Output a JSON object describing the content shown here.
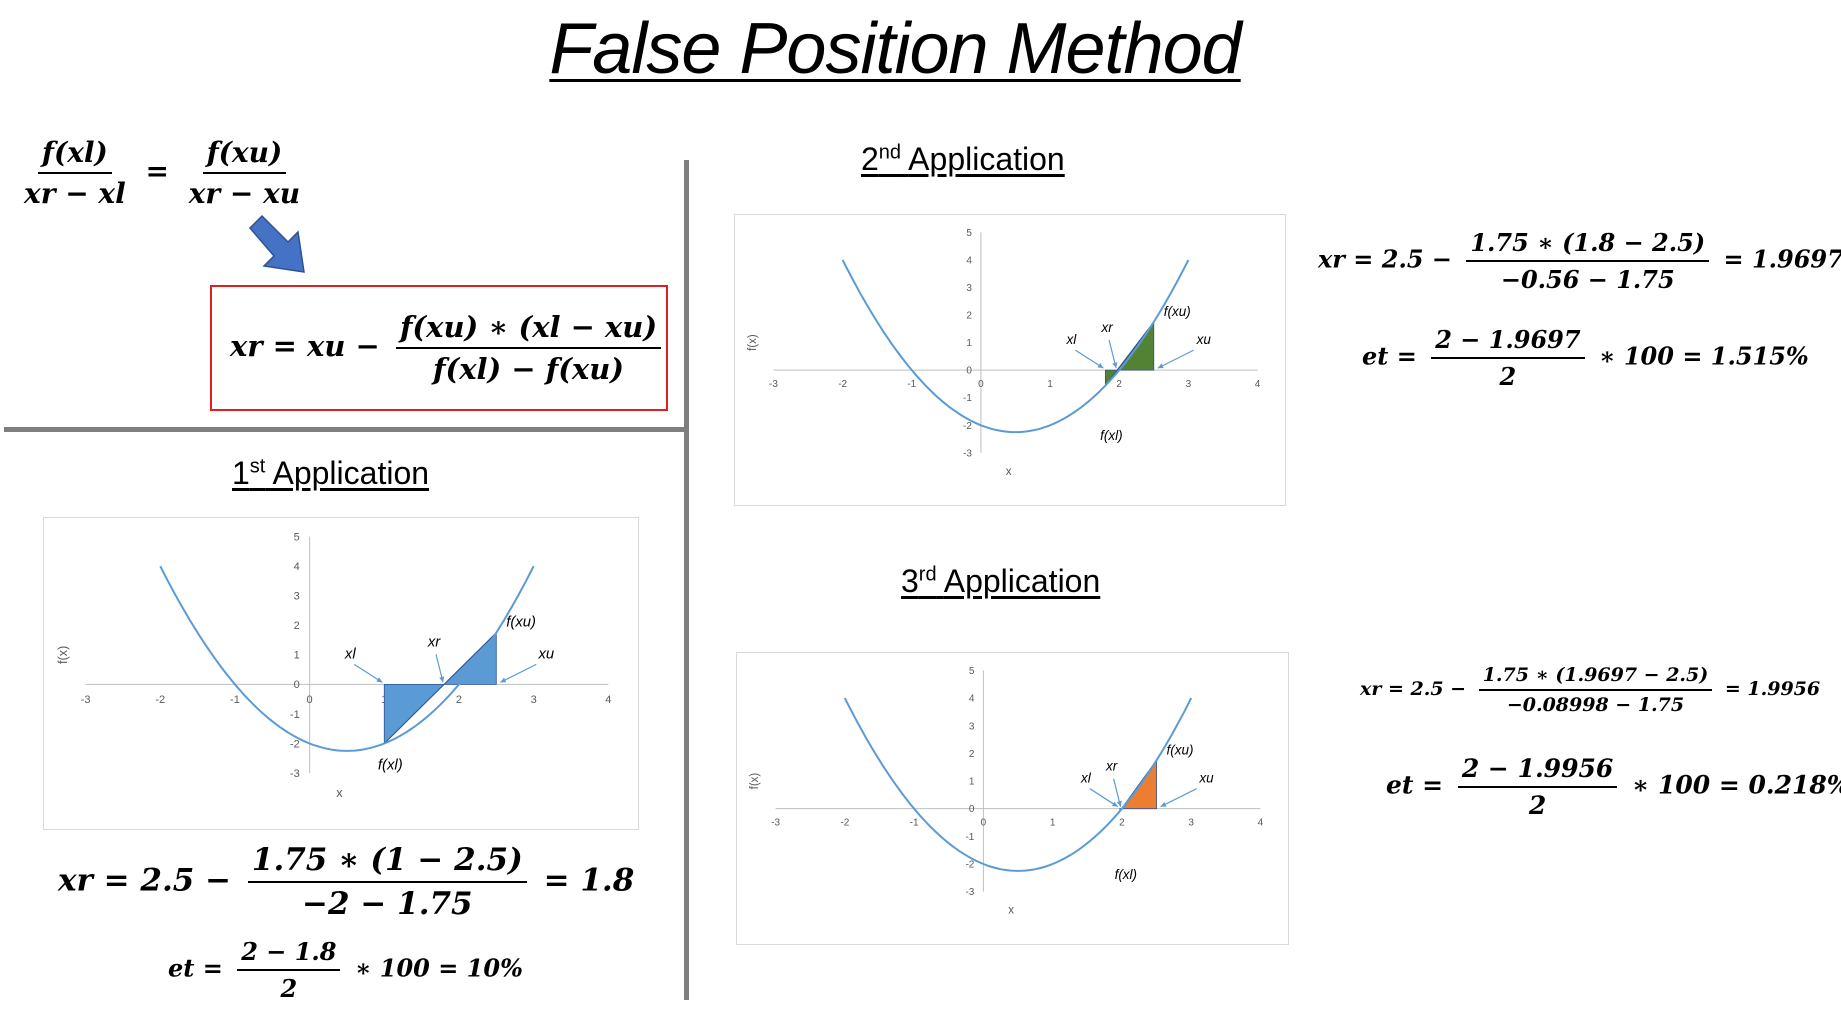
{
  "title": "False Position Method",
  "proportion": {
    "left_num": "f(xl)",
    "left_den": "xr − xl",
    "eq": "=",
    "right_num": "f(xu)",
    "right_den": "xr − xu"
  },
  "formula": {
    "lhs": "xr = xu −",
    "num": "f(xu) ∗ (xl − xu)",
    "den": "f(xl) − f(xu)"
  },
  "arrow_color": "#4472c4",
  "box_color": "#e02020",
  "applications": [
    {
      "ordinal": "1",
      "suffix": "st",
      "label": "Application",
      "xr": {
        "lhs": "xr = 2.5 −",
        "num": "1.75 ∗ (1 − 2.5)",
        "den": "−2 − 1.75",
        "rhs": "= 1.8"
      },
      "et": {
        "lhs": "et =",
        "num": "2 − 1.8",
        "den": "2",
        "rhs": "∗ 100  = 10%"
      },
      "fill": "#5b9bd5"
    },
    {
      "ordinal": "2",
      "suffix": "nd",
      "label": "Application",
      "xr": {
        "lhs": "xr = 2.5 −",
        "num": "1.75 ∗ (1.8 − 2.5)",
        "den": "−0.56 − 1.75",
        "rhs": "= 1.9697"
      },
      "et": {
        "lhs": "et =",
        "num": "2 − 1.9697",
        "den": "2",
        "rhs": "∗ 100  = 1.515%"
      },
      "fill": "#548235"
    },
    {
      "ordinal": "3",
      "suffix": "rd",
      "label": "Application",
      "xr": {
        "lhs": "xr = 2.5 −",
        "num": "1.75 ∗ (1.9697 − 2.5)",
        "den": "−0.08998 − 1.75",
        "rhs": "= 1.9956"
      },
      "et": {
        "lhs": "et =",
        "num": "2 − 1.9956",
        "den": "2",
        "rhs": "∗ 100  = 0.218%"
      },
      "fill": "#ed7d31"
    }
  ],
  "chart_data": [
    {
      "type": "line",
      "title": "",
      "xlabel": "x",
      "ylabel": "f(x)",
      "xlim": [
        -3,
        4
      ],
      "ylim": [
        -3,
        5
      ],
      "xticks": [
        "-3",
        "-2",
        "-1",
        "0",
        "1",
        "2",
        "3",
        "4"
      ],
      "yticks": [
        "-3",
        "-2",
        "-1",
        "0",
        "1",
        "2",
        "3",
        "4",
        "5"
      ],
      "x": [
        -2,
        -1.5,
        -1,
        -0.5,
        0,
        0.5,
        1,
        1.5,
        2,
        2.5,
        3
      ],
      "y": [
        4,
        1.5,
        -0.25,
        -1.5,
        -2,
        -2.25,
        -2,
        -1.5,
        -0.75,
        1.75,
        4
      ],
      "line_color": "#5b9bd5",
      "xl": 1,
      "xr": 1.8,
      "xu": 2.5,
      "f_xl": -2,
      "f_xu": 1.75,
      "fill": "#5b9bd5",
      "annotations": [
        "f(xu)",
        "xr",
        "xl",
        "xu",
        "f(xl)"
      ]
    },
    {
      "type": "line",
      "title": "",
      "xlabel": "x",
      "ylabel": "f(x)",
      "xlim": [
        -3,
        4
      ],
      "ylim": [
        -3,
        5
      ],
      "xticks": [
        "-3",
        "-2",
        "-1",
        "0",
        "1",
        "2",
        "3",
        "4"
      ],
      "yticks": [
        "-3",
        "-2",
        "-1",
        "0",
        "1",
        "2",
        "3",
        "4",
        "5"
      ],
      "x": [
        -2,
        -1.5,
        -1,
        -0.5,
        0,
        0.5,
        1,
        1.5,
        2,
        2.5,
        3
      ],
      "y": [
        4,
        1.5,
        -0.25,
        -1.5,
        -2,
        -2.25,
        -2,
        -1.5,
        -0.75,
        1.75,
        4
      ],
      "line_color": "#5b9bd5",
      "xl": 1.8,
      "xr": 1.9697,
      "xu": 2.5,
      "f_xl": -0.56,
      "f_xu": 1.75,
      "fill": "#548235",
      "annotations": [
        "f(xu)",
        "xr",
        "xl",
        "xu",
        "f(xl)"
      ]
    },
    {
      "type": "line",
      "title": "",
      "xlabel": "x",
      "ylabel": "f(x)",
      "xlim": [
        -3,
        4
      ],
      "ylim": [
        -3,
        5
      ],
      "xticks": [
        "-3",
        "-2",
        "-1",
        "0",
        "1",
        "2",
        "3",
        "4"
      ],
      "yticks": [
        "-3",
        "-2",
        "-1",
        "0",
        "1",
        "2",
        "3",
        "4",
        "5"
      ],
      "x": [
        -2,
        -1.5,
        -1,
        -0.5,
        0,
        0.5,
        1,
        1.5,
        2,
        2.5,
        3
      ],
      "y": [
        4,
        1.5,
        -0.25,
        -1.5,
        -2,
        -2.25,
        -2,
        -1.5,
        -0.75,
        1.75,
        4
      ],
      "line_color": "#5b9bd5",
      "xl": 1.9697,
      "xr": 1.9956,
      "xu": 2.5,
      "f_xl": -0.08998,
      "f_xu": 1.75,
      "fill": "#ed7d31",
      "annotations": [
        "f(xu)",
        "xr",
        "xl",
        "xu",
        "f(xl)"
      ]
    }
  ]
}
